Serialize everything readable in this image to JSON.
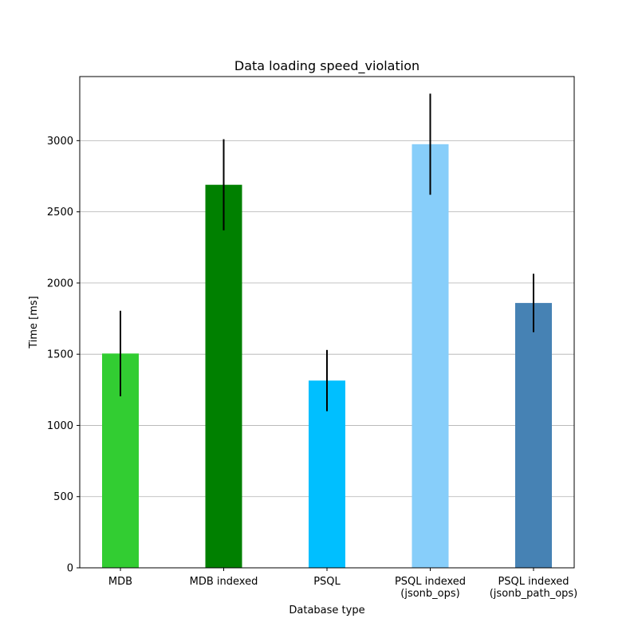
{
  "chart_data": {
    "type": "bar",
    "title": "Data loading speed_violation",
    "xlabel": "Database type",
    "ylabel": "Time [ms]",
    "categories": [
      [
        "MDB"
      ],
      [
        "MDB indexed"
      ],
      [
        "PSQL"
      ],
      [
        "PSQL indexed",
        "(jsonb_ops)"
      ],
      [
        "PSQL indexed",
        "(jsonb_path_ops)"
      ]
    ],
    "values": [
      1505,
      2690,
      1315,
      2975,
      1860
    ],
    "errors": [
      300,
      320,
      215,
      355,
      205
    ],
    "colors": [
      "#32cd32",
      "#008000",
      "#00bfff",
      "#87cefa",
      "#4682b4"
    ],
    "error_color": "#000000",
    "ylim": [
      0,
      3450
    ],
    "yticks": [
      0,
      500,
      1000,
      1500,
      2000,
      2500,
      3000
    ],
    "grid": "y"
  }
}
